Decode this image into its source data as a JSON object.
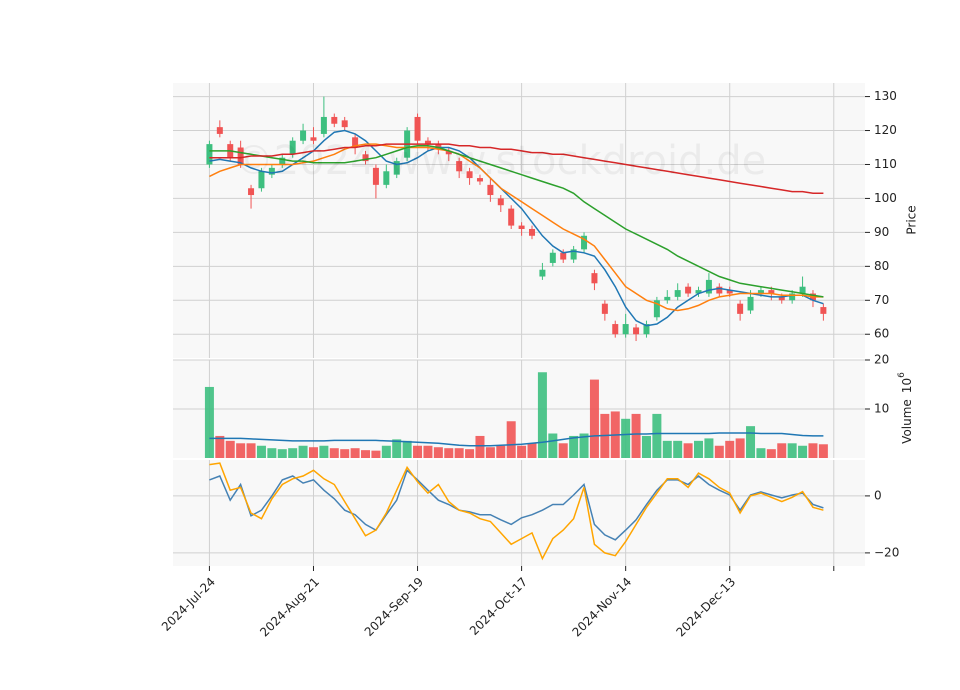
{
  "chart_data": [
    {
      "type": "candlestick",
      "watermark": "©2024 www.stockdroid.de",
      "ylabel": "Price",
      "x": [
        0,
        2,
        4,
        6,
        8,
        10,
        12,
        14,
        16,
        18,
        20,
        22,
        24,
        26,
        28,
        30,
        32,
        34,
        36,
        38,
        40,
        42,
        44,
        46,
        48,
        50,
        52,
        54,
        56,
        58,
        60,
        62,
        64,
        66,
        68,
        70,
        72,
        74,
        76,
        78,
        80,
        82,
        84,
        86,
        88,
        90,
        92,
        94,
        96,
        98,
        100,
        102,
        104,
        106,
        108,
        110,
        112,
        114,
        116,
        118
      ],
      "open": [
        110,
        121,
        116,
        115,
        103,
        103,
        107,
        110,
        113,
        117,
        118,
        119,
        124,
        123,
        118,
        113,
        109,
        104,
        107,
        112,
        124,
        117,
        116,
        114,
        111,
        108,
        106,
        104,
        100,
        97,
        92,
        91,
        77,
        81,
        84,
        82,
        85,
        78,
        69,
        63,
        60,
        62,
        60,
        65,
        70,
        71,
        74,
        72,
        72,
        74,
        73,
        69,
        67,
        72,
        73,
        71,
        70,
        72,
        72,
        68
      ],
      "high": [
        117,
        123,
        117,
        117,
        104,
        109,
        110,
        113,
        118,
        122,
        121,
        130,
        125,
        124,
        119,
        114,
        110,
        110,
        112,
        121,
        125,
        118,
        117,
        115,
        112,
        109,
        107,
        106,
        101,
        98,
        93,
        92,
        81,
        85,
        85,
        86,
        90,
        79,
        70,
        64,
        66,
        63,
        64,
        71,
        73,
        75,
        75,
        74,
        78,
        75,
        74,
        70,
        73,
        74,
        74,
        72,
        73,
        77,
        73,
        69
      ],
      "low": [
        109,
        118,
        111,
        109,
        97,
        102,
        106,
        109,
        112,
        116,
        116,
        118,
        121,
        120,
        113,
        110,
        100,
        103,
        106,
        111,
        116,
        114,
        113,
        111,
        106,
        104,
        104,
        99,
        96,
        91,
        89,
        88,
        76,
        80,
        81,
        81,
        84,
        73,
        64,
        59,
        59,
        58,
        59,
        64,
        69,
        70,
        71,
        71,
        71,
        71,
        71,
        64,
        66,
        71,
        70,
        69,
        69,
        71,
        68,
        64
      ],
      "close": [
        116,
        119,
        112,
        110,
        101,
        108,
        109,
        112,
        117,
        120,
        117,
        124,
        122,
        121,
        115,
        111,
        104,
        108,
        111,
        120,
        117,
        116,
        115,
        113,
        108,
        106,
        105,
        101,
        98,
        92,
        91,
        89,
        79,
        84,
        82,
        85,
        89,
        75,
        66,
        60,
        63,
        60,
        63,
        70,
        71,
        73,
        72,
        73,
        76,
        72,
        72,
        66,
        71,
        73,
        72,
        70,
        72,
        74,
        70,
        66
      ],
      "up_color": "#3dbf7f",
      "down_color": "#f05454",
      "series": [
        {
          "color": "#1f77b4",
          "values": [
            111,
            111.5,
            111,
            110.5,
            109,
            108,
            107.5,
            108,
            110,
            112,
            114,
            117,
            119.5,
            120,
            119,
            117,
            114,
            111,
            110,
            110.5,
            112,
            114,
            115,
            115,
            114,
            112,
            109,
            106,
            103,
            100,
            97,
            93,
            89,
            86,
            84,
            84.5,
            84,
            83,
            79,
            74,
            68,
            64,
            62.5,
            63,
            65,
            68,
            70,
            72,
            73,
            73.5,
            73,
            72.5,
            72,
            71.5,
            71,
            71,
            71.5,
            71.5,
            70,
            69
          ]
        },
        {
          "color": "#ff7f0e",
          "values": [
            106.5,
            108,
            109,
            110,
            110,
            110,
            110,
            110,
            110,
            110.5,
            111,
            112,
            113,
            114.5,
            115.5,
            116,
            116,
            115.5,
            115,
            115,
            115,
            115,
            114.5,
            114,
            113,
            111,
            109,
            106,
            103,
            101,
            99,
            97,
            95,
            93,
            91,
            89.5,
            88,
            86,
            82,
            78,
            74,
            72,
            70,
            69,
            67.5,
            67,
            67.5,
            68.5,
            70,
            71,
            71.5,
            72,
            72,
            72,
            72,
            71.5,
            71.5,
            71.5,
            71,
            71
          ]
        },
        {
          "color": "#2ca02c",
          "values": [
            114,
            114,
            114,
            113.5,
            113,
            112.5,
            112,
            111.5,
            111,
            111,
            110.5,
            110.5,
            110.5,
            110.5,
            111,
            111.5,
            112,
            113,
            114,
            115,
            115.5,
            115.5,
            115,
            114,
            113,
            112,
            111,
            110,
            109,
            108,
            107,
            106,
            105,
            104,
            103,
            101.5,
            99,
            97,
            95,
            93,
            91,
            89.5,
            88,
            86.5,
            85,
            83,
            81.5,
            80,
            78.5,
            77,
            76,
            75,
            74.5,
            74,
            73.5,
            73,
            72.5,
            72,
            71.5,
            71
          ]
        },
        {
          "color": "#d62728",
          "values": [
            112,
            112,
            112,
            112,
            112.5,
            112.5,
            112.5,
            113,
            113,
            113.5,
            114,
            114,
            114.5,
            115,
            115,
            115.5,
            115.5,
            116,
            116,
            116,
            116,
            116,
            116,
            116,
            115.5,
            115.5,
            115,
            115,
            114.5,
            114.5,
            114,
            113.5,
            113.5,
            113,
            113,
            112.5,
            112,
            111.5,
            111,
            110.5,
            110,
            109.5,
            109,
            108.5,
            108,
            107.5,
            107,
            106.5,
            106,
            105.5,
            105,
            104.5,
            104,
            103.5,
            103,
            102.5,
            102,
            102,
            101.5,
            101.5
          ]
        }
      ],
      "xlim": [
        -7,
        126
      ],
      "xticks": [
        {
          "value": 0,
          "label": "2024-Jul-24"
        },
        {
          "value": 20,
          "label": "2024-Aug-21"
        },
        {
          "value": 40,
          "label": "2024-Sep-19"
        },
        {
          "value": 60,
          "label": "2024-Oct-17"
        },
        {
          "value": 80,
          "label": "2024-Nov-14"
        },
        {
          "value": 100,
          "label": "2024-Dec-13"
        },
        {
          "value": 120,
          "label": null
        }
      ],
      "ylim": [
        53,
        134
      ],
      "yticks": [
        60,
        70,
        80,
        90,
        100,
        110,
        120,
        130
      ],
      "grid": true
    },
    {
      "type": "bar",
      "ylabel": "Volume",
      "offset_base": "10",
      "offset_exponent": "6",
      "values": [
        14.5,
        4.5,
        3.5,
        3,
        3,
        2.5,
        2,
        1.8,
        2,
        2.5,
        2.2,
        2.5,
        2,
        1.8,
        2,
        1.6,
        1.5,
        2.5,
        3.8,
        3.5,
        2.5,
        2.5,
        2.2,
        2,
        2,
        1.8,
        4.5,
        2.2,
        2.5,
        7.5,
        2.5,
        3,
        17.5,
        5,
        3,
        4.5,
        5,
        16,
        9,
        9.5,
        8,
        9,
        4.5,
        9,
        3.5,
        3.5,
        3,
        3.5,
        4,
        2.5,
        3.5,
        4,
        6.5,
        2,
        1.8,
        3,
        3,
        2.5,
        3,
        2.8
      ],
      "series": [
        {
          "color": "#1f77b4",
          "values": [
            4,
            4,
            4,
            4,
            3.9,
            3.8,
            3.7,
            3.6,
            3.5,
            3.5,
            3.5,
            3.5,
            3.6,
            3.6,
            3.6,
            3.6,
            3.6,
            3.5,
            3.4,
            3.3,
            3.2,
            3.1,
            3,
            2.8,
            2.6,
            2.5,
            2.5,
            2.5,
            2.6,
            2.7,
            2.8,
            3,
            3.2,
            3.5,
            3.8,
            4.1,
            4.3,
            4.5,
            4.6,
            4.7,
            4.8,
            4.9,
            4.9,
            5,
            5,
            5,
            5,
            5,
            5,
            5.1,
            5.1,
            5.1,
            5.1,
            5,
            5,
            5,
            4.8,
            4.6,
            4.5,
            4.5
          ]
        }
      ],
      "ylim": [
        0,
        20
      ],
      "yticks": [
        10,
        20
      ],
      "grid": true
    },
    {
      "type": "line",
      "series": [
        {
          "color": "#4682b4",
          "values": [
            5.6,
            7,
            -1.5,
            4,
            -7,
            -5,
            0,
            5.6,
            7,
            4.5,
            5.6,
            2,
            -1,
            -5,
            -6.6,
            -10,
            -12,
            -6.6,
            -1.5,
            9,
            5.6,
            2,
            -1.5,
            -3,
            -5,
            -5.6,
            -6.6,
            -6.6,
            -8.4,
            -10,
            -7.7,
            -6.6,
            -5,
            -3,
            -3,
            0.3,
            4,
            -10,
            -13.7,
            -15.4,
            -12,
            -8.4,
            -3,
            2,
            5.6,
            5.6,
            4,
            7,
            4,
            2,
            0.3,
            -5,
            0.3,
            1.4,
            0.3,
            -0.7,
            0.3,
            1,
            -3,
            -4.2
          ]
        },
        {
          "color": "#ffa500",
          "values": [
            11,
            11.5,
            2,
            3,
            -6,
            -8,
            -1,
            4,
            6,
            7,
            9,
            6,
            4,
            -2,
            -8,
            -14,
            -12,
            -6,
            2,
            10,
            5,
            1,
            4,
            -2,
            -5,
            -6,
            -8,
            -9,
            -13,
            -17,
            -15,
            -13,
            -22,
            -15,
            -12,
            -8,
            3,
            -17,
            -20,
            -21,
            -16,
            -10,
            -4,
            1,
            6,
            6,
            3,
            8,
            6,
            3,
            1,
            -6,
            0,
            1,
            -0.5,
            -2,
            -0.5,
            1.5,
            -4,
            -5
          ]
        }
      ],
      "ylim": [
        -24.6,
        12.6
      ],
      "yticks": [
        0,
        {
          "value": -20,
          "label": "−20"
        }
      ],
      "grid": true
    }
  ]
}
